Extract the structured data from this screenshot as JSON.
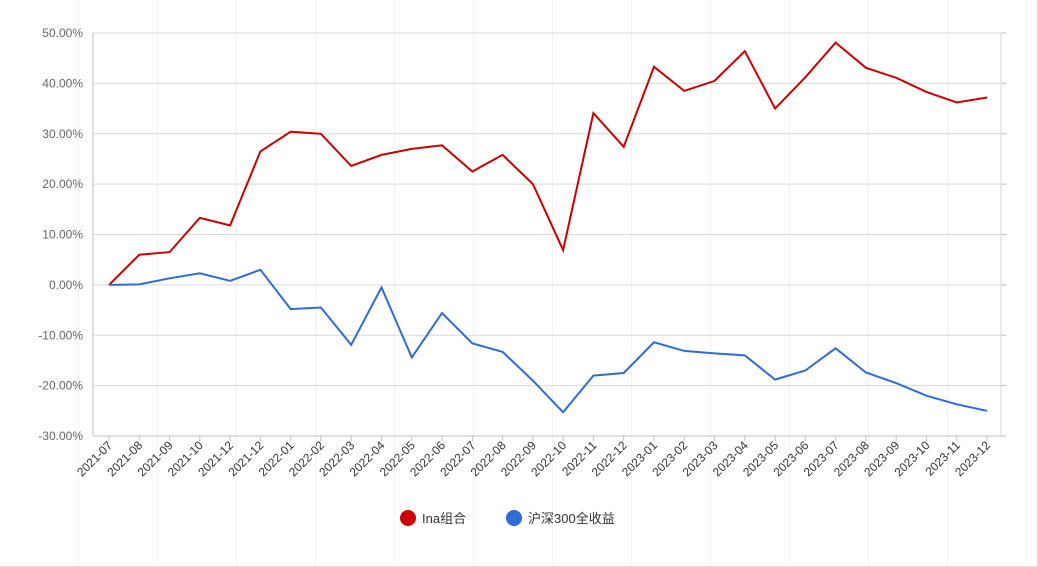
{
  "chart_data": {
    "type": "line",
    "categories": [
      "2021-07",
      "2021-08",
      "2021-09",
      "2021-10",
      "2021-12",
      "2021-12",
      "2022-01",
      "2022-02",
      "2022-03",
      "2022-04",
      "2022-05",
      "2022-06",
      "2022-07",
      "2022-08",
      "2022-09",
      "2022-10",
      "2022-11",
      "2022-12",
      "2023-01",
      "2023-02",
      "2023-03",
      "2023-04",
      "2023-05",
      "2023-06",
      "2023-07",
      "2023-08",
      "2023-09",
      "2023-10",
      "2023-11",
      "2023-12"
    ],
    "ytick_labels": [
      "50.00%",
      "40.00%",
      "30.00%",
      "20.00%",
      "10.00%",
      "0.00%",
      "-10.00%",
      "-20.00%",
      "-30.00%"
    ],
    "ylim": [
      -30,
      50
    ],
    "y_unit": "%",
    "grid": "horizontal",
    "legend_position": "bottom-center",
    "series": [
      {
        "name": "Ina组合",
        "color": "#cc0000",
        "values": [
          0.0,
          6.0,
          6.5,
          13.3,
          11.8,
          26.5,
          30.4,
          30.0,
          23.6,
          25.8,
          27.0,
          27.7,
          22.5,
          25.8,
          20.0,
          6.9,
          34.1,
          27.4,
          43.3,
          38.5,
          40.5,
          46.4,
          35.0,
          41.2,
          48.1,
          43.1,
          41.1,
          38.3,
          36.2,
          37.2
        ]
      },
      {
        "name": "沪深300全收益",
        "color": "#2f6bd4",
        "values": [
          0.0,
          0.1,
          1.3,
          2.3,
          0.8,
          3.0,
          -4.8,
          -4.5,
          -11.9,
          -0.5,
          -14.4,
          -5.6,
          -11.6,
          -13.3,
          -19.0,
          -25.3,
          -18.0,
          -17.5,
          -11.4,
          -13.1,
          -13.6,
          -14.0,
          -18.8,
          -17.0,
          -12.6,
          -17.4,
          -19.5,
          -22.0,
          -23.7,
          -25.0
        ]
      }
    ]
  }
}
